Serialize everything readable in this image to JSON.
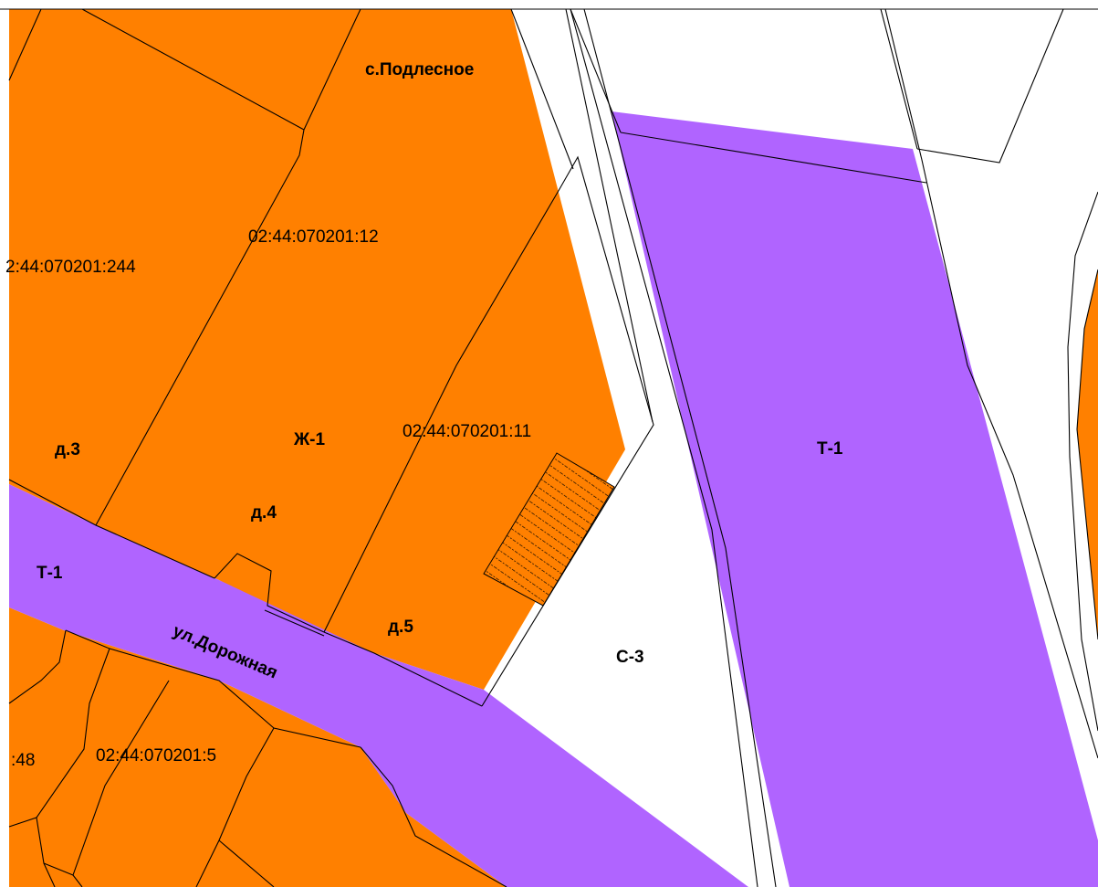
{
  "colors": {
    "residential": "#ff8000",
    "transport": "#b064ff",
    "background": "#ffffff",
    "boundary": "#000000"
  },
  "labels": {
    "village": "с.Подлесное",
    "zone_zh1": "Ж-1",
    "zone_t1_right": "Т-1",
    "zone_t1_left": "Т-1",
    "zone_c3": "С-3",
    "street": "ул.Дорожная",
    "house_3": "д.3",
    "house_4": "д.4",
    "house_5": "д.5"
  },
  "parcels": {
    "p12": "02:44:070201:12",
    "p244": "2:44:070201:244",
    "p11": "02:44:070201:11",
    "p5": "02:44:070201:5",
    "p48": ":48"
  },
  "hatched_area": {
    "pattern": "diagonal-hatch"
  }
}
